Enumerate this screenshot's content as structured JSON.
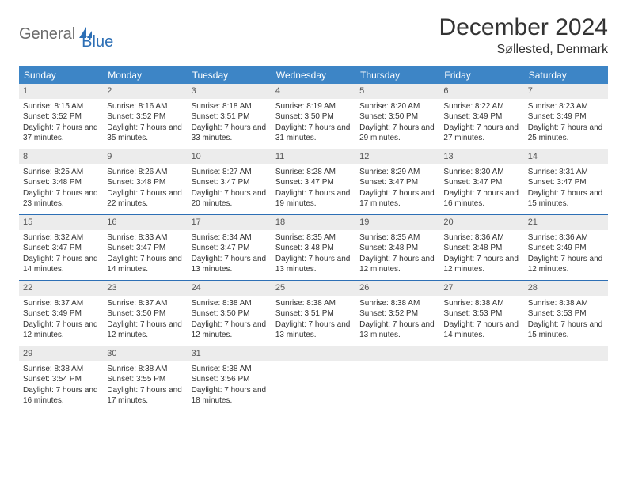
{
  "logo": {
    "text1": "General",
    "text2": "Blue"
  },
  "title": "December 2024",
  "location": "Søllested, Denmark",
  "colors": {
    "header_bg": "#3d85c6",
    "header_text": "#ffffff",
    "daynum_bg": "#ececec",
    "week_border": "#2d6fb5",
    "logo_gray": "#6b6b6b",
    "logo_blue": "#2d6fb5",
    "text": "#333333",
    "background": "#ffffff"
  },
  "weekdays": [
    "Sunday",
    "Monday",
    "Tuesday",
    "Wednesday",
    "Thursday",
    "Friday",
    "Saturday"
  ],
  "days": [
    {
      "n": 1,
      "sunrise": "8:15 AM",
      "sunset": "3:52 PM",
      "dl": "7 hours and 37 minutes."
    },
    {
      "n": 2,
      "sunrise": "8:16 AM",
      "sunset": "3:52 PM",
      "dl": "7 hours and 35 minutes."
    },
    {
      "n": 3,
      "sunrise": "8:18 AM",
      "sunset": "3:51 PM",
      "dl": "7 hours and 33 minutes."
    },
    {
      "n": 4,
      "sunrise": "8:19 AM",
      "sunset": "3:50 PM",
      "dl": "7 hours and 31 minutes."
    },
    {
      "n": 5,
      "sunrise": "8:20 AM",
      "sunset": "3:50 PM",
      "dl": "7 hours and 29 minutes."
    },
    {
      "n": 6,
      "sunrise": "8:22 AM",
      "sunset": "3:49 PM",
      "dl": "7 hours and 27 minutes."
    },
    {
      "n": 7,
      "sunrise": "8:23 AM",
      "sunset": "3:49 PM",
      "dl": "7 hours and 25 minutes."
    },
    {
      "n": 8,
      "sunrise": "8:25 AM",
      "sunset": "3:48 PM",
      "dl": "7 hours and 23 minutes."
    },
    {
      "n": 9,
      "sunrise": "8:26 AM",
      "sunset": "3:48 PM",
      "dl": "7 hours and 22 minutes."
    },
    {
      "n": 10,
      "sunrise": "8:27 AM",
      "sunset": "3:47 PM",
      "dl": "7 hours and 20 minutes."
    },
    {
      "n": 11,
      "sunrise": "8:28 AM",
      "sunset": "3:47 PM",
      "dl": "7 hours and 19 minutes."
    },
    {
      "n": 12,
      "sunrise": "8:29 AM",
      "sunset": "3:47 PM",
      "dl": "7 hours and 17 minutes."
    },
    {
      "n": 13,
      "sunrise": "8:30 AM",
      "sunset": "3:47 PM",
      "dl": "7 hours and 16 minutes."
    },
    {
      "n": 14,
      "sunrise": "8:31 AM",
      "sunset": "3:47 PM",
      "dl": "7 hours and 15 minutes."
    },
    {
      "n": 15,
      "sunrise": "8:32 AM",
      "sunset": "3:47 PM",
      "dl": "7 hours and 14 minutes."
    },
    {
      "n": 16,
      "sunrise": "8:33 AM",
      "sunset": "3:47 PM",
      "dl": "7 hours and 14 minutes."
    },
    {
      "n": 17,
      "sunrise": "8:34 AM",
      "sunset": "3:47 PM",
      "dl": "7 hours and 13 minutes."
    },
    {
      "n": 18,
      "sunrise": "8:35 AM",
      "sunset": "3:48 PM",
      "dl": "7 hours and 13 minutes."
    },
    {
      "n": 19,
      "sunrise": "8:35 AM",
      "sunset": "3:48 PM",
      "dl": "7 hours and 12 minutes."
    },
    {
      "n": 20,
      "sunrise": "8:36 AM",
      "sunset": "3:48 PM",
      "dl": "7 hours and 12 minutes."
    },
    {
      "n": 21,
      "sunrise": "8:36 AM",
      "sunset": "3:49 PM",
      "dl": "7 hours and 12 minutes."
    },
    {
      "n": 22,
      "sunrise": "8:37 AM",
      "sunset": "3:49 PM",
      "dl": "7 hours and 12 minutes."
    },
    {
      "n": 23,
      "sunrise": "8:37 AM",
      "sunset": "3:50 PM",
      "dl": "7 hours and 12 minutes."
    },
    {
      "n": 24,
      "sunrise": "8:38 AM",
      "sunset": "3:50 PM",
      "dl": "7 hours and 12 minutes."
    },
    {
      "n": 25,
      "sunrise": "8:38 AM",
      "sunset": "3:51 PM",
      "dl": "7 hours and 13 minutes."
    },
    {
      "n": 26,
      "sunrise": "8:38 AM",
      "sunset": "3:52 PM",
      "dl": "7 hours and 13 minutes."
    },
    {
      "n": 27,
      "sunrise": "8:38 AM",
      "sunset": "3:53 PM",
      "dl": "7 hours and 14 minutes."
    },
    {
      "n": 28,
      "sunrise": "8:38 AM",
      "sunset": "3:53 PM",
      "dl": "7 hours and 15 minutes."
    },
    {
      "n": 29,
      "sunrise": "8:38 AM",
      "sunset": "3:54 PM",
      "dl": "7 hours and 16 minutes."
    },
    {
      "n": 30,
      "sunrise": "8:38 AM",
      "sunset": "3:55 PM",
      "dl": "7 hours and 17 minutes."
    },
    {
      "n": 31,
      "sunrise": "8:38 AM",
      "sunset": "3:56 PM",
      "dl": "7 hours and 18 minutes."
    }
  ],
  "labels": {
    "sunrise": "Sunrise:",
    "sunset": "Sunset:",
    "daylight": "Daylight:"
  },
  "layout": {
    "start_offset": 0,
    "weeks": 5,
    "cols": 7
  }
}
